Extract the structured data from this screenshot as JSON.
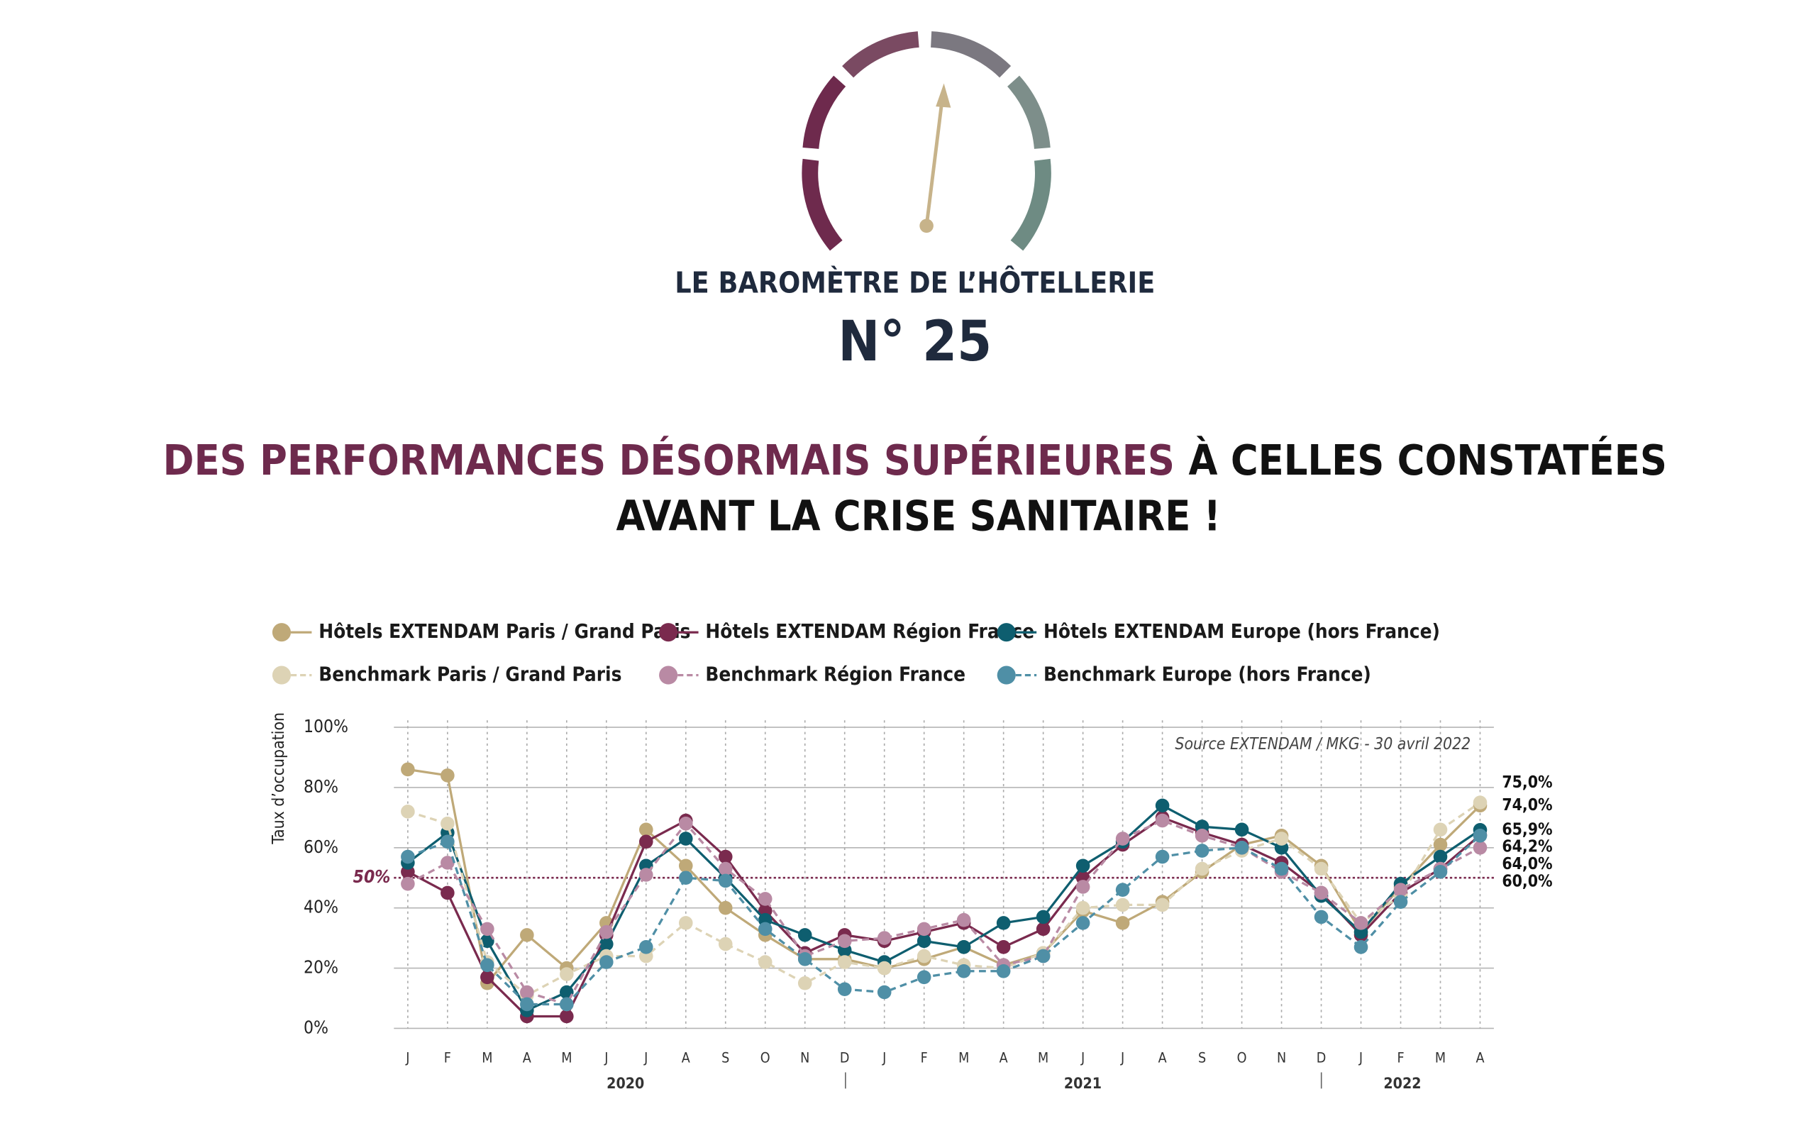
{
  "header": {
    "title": "LE BAROMÈTRE DE L’HÔTELLERIE",
    "number": "N° 25"
  },
  "headline": {
    "highlight": "DES PERFORMANCES DÉSORMAIS SUPÉRIEURES",
    "rest": "À CELLES CONSTATÉES",
    "line2": "AVANT LA CRISE SANITAIRE !"
  },
  "chart_data": {
    "type": "line",
    "categories": [
      "J",
      "F",
      "M",
      "A",
      "M",
      "J",
      "J",
      "A",
      "S",
      "O",
      "N",
      "D",
      "J",
      "F",
      "M",
      "A",
      "M",
      "J",
      "J",
      "A",
      "S",
      "O",
      "N",
      "D",
      "J",
      "F",
      "M",
      "A"
    ],
    "year_labels": [
      "2020",
      "2021",
      "2022"
    ],
    "ylabel": "Taux d’occupation",
    "annotation": "Source EXTENDAM / MKG - 30 avril 2022",
    "ylim": [
      0,
      100
    ],
    "yticks": [
      {
        "value": 0,
        "label": "0%"
      },
      {
        "value": 20,
        "label": "20%"
      },
      {
        "value": 40,
        "label": "40%"
      },
      {
        "value": 60,
        "label": "60%"
      },
      {
        "value": 80,
        "label": "80%"
      },
      {
        "value": 100,
        "label": "100%"
      }
    ],
    "reference_line": {
      "value": 50,
      "label": "50%",
      "color": "#7a2a4e"
    },
    "grid": true,
    "series": [
      {
        "name": "Hôtels EXTENDAM Paris / Grand Paris",
        "color": "#bfa978",
        "dashed": false,
        "values": [
          86,
          84,
          15,
          31,
          20,
          35,
          66,
          54,
          40,
          31,
          23,
          23,
          20,
          23,
          27,
          21,
          25,
          39,
          35,
          42,
          52,
          61,
          64,
          54,
          32,
          47,
          61,
          74
        ],
        "value_labels": [
          null,
          null,
          null,
          null,
          null,
          null,
          null,
          null,
          null,
          null,
          null,
          null,
          null,
          null,
          null,
          null,
          null,
          null,
          null,
          null,
          null,
          null,
          null,
          null,
          null,
          null,
          null,
          "74,0%"
        ]
      },
      {
        "name": "Hôtels EXTENDAM Région France",
        "color": "#7a2a4e",
        "dashed": false,
        "values": [
          52,
          45,
          17,
          4,
          4,
          31,
          62,
          69,
          57,
          39,
          25,
          31,
          29,
          32,
          35,
          27,
          33,
          50,
          61,
          70,
          65,
          61,
          55,
          45,
          31,
          45,
          53,
          64.2
        ],
        "value_labels": [
          null,
          null,
          null,
          null,
          null,
          null,
          null,
          null,
          null,
          null,
          null,
          null,
          null,
          null,
          null,
          null,
          null,
          null,
          null,
          null,
          null,
          null,
          null,
          null,
          null,
          null,
          null,
          "64,2%"
        ]
      },
      {
        "name": "Hôtels EXTENDAM Europe (hors France)",
        "color": "#0e5e6f",
        "dashed": false,
        "values": [
          55,
          65,
          29,
          6,
          12,
          28,
          54,
          63,
          50,
          36,
          31,
          26,
          22,
          29,
          27,
          35,
          37,
          54,
          62,
          74,
          67,
          66,
          60,
          44,
          32,
          48,
          57,
          65.9
        ],
        "value_labels": [
          null,
          null,
          null,
          null,
          null,
          null,
          null,
          null,
          null,
          null,
          null,
          null,
          null,
          null,
          null,
          null,
          null,
          null,
          null,
          null,
          null,
          null,
          null,
          null,
          null,
          null,
          null,
          "65,9%"
        ]
      },
      {
        "name": "Benchmark Paris / Grand Paris",
        "color": "#ddd3b5",
        "dashed": true,
        "values": [
          72,
          68,
          22,
          11,
          18,
          24,
          24,
          35,
          28,
          22,
          15,
          22,
          20,
          24,
          21,
          20,
          25,
          40,
          41,
          41,
          53,
          59,
          63,
          53,
          35,
          44,
          66,
          75
        ],
        "value_labels": [
          null,
          null,
          null,
          null,
          null,
          null,
          null,
          null,
          null,
          null,
          null,
          null,
          null,
          null,
          null,
          null,
          null,
          null,
          null,
          null,
          null,
          null,
          null,
          null,
          null,
          null,
          null,
          "75,0%"
        ]
      },
      {
        "name": "Benchmark Région France",
        "color": "#b98aa4",
        "dashed": true,
        "values": [
          48,
          55,
          33,
          12,
          8,
          32,
          51,
          68,
          53,
          43,
          24,
          29,
          30,
          33,
          36,
          21,
          24,
          47,
          63,
          69,
          64,
          60,
          52,
          45,
          35,
          46,
          53,
          60
        ],
        "value_labels": [
          null,
          null,
          null,
          null,
          null,
          null,
          null,
          null,
          null,
          null,
          null,
          null,
          null,
          null,
          null,
          null,
          null,
          null,
          null,
          null,
          null,
          null,
          null,
          null,
          null,
          null,
          null,
          "60,0%"
        ]
      },
      {
        "name": "Benchmark Europe (hors France)",
        "color": "#4f8fa6",
        "dashed": true,
        "values": [
          57,
          62,
          21,
          8,
          8,
          22,
          27,
          50,
          49,
          33,
          23,
          13,
          12,
          17,
          19,
          19,
          24,
          35,
          46,
          57,
          59,
          60,
          53,
          37,
          27,
          42,
          52,
          64
        ],
        "value_labels": [
          null,
          null,
          null,
          null,
          null,
          null,
          null,
          null,
          null,
          null,
          null,
          null,
          null,
          null,
          null,
          null,
          null,
          null,
          null,
          null,
          null,
          null,
          null,
          null,
          null,
          null,
          null,
          "64,0%"
        ]
      }
    ]
  }
}
